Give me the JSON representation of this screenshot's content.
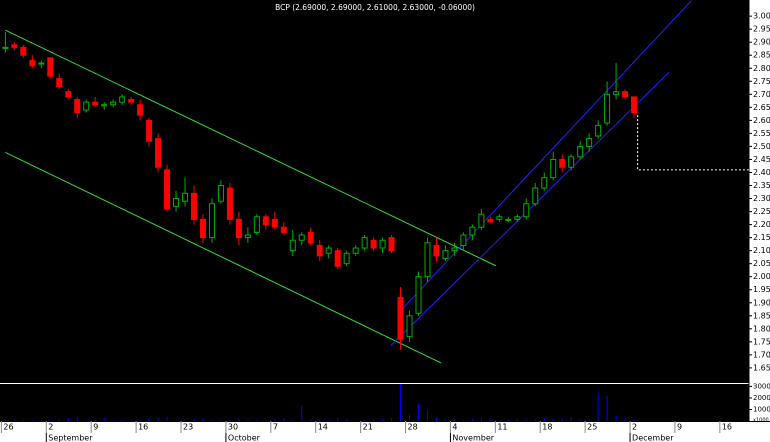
{
  "chart_data": {
    "type": "candlestick",
    "title": "BCP (2.69000, 2.69000, 2.61000, 2.63000, -0.06000)",
    "categories": [
      "26",
      null,
      null,
      null,
      null,
      "2",
      null,
      null,
      null,
      null,
      "9",
      null,
      null,
      null,
      null,
      "16",
      null,
      null,
      null,
      null,
      "23",
      null,
      null,
      null,
      null,
      "30",
      null,
      null,
      null,
      null,
      "7",
      null,
      null,
      null,
      null,
      "14",
      null,
      null,
      null,
      null,
      "21",
      null,
      null,
      null,
      null,
      "28",
      null,
      null,
      null,
      null,
      "4",
      null,
      null,
      null,
      null,
      "11",
      null,
      null,
      null,
      null,
      "18",
      null,
      null,
      null,
      null,
      "25",
      null,
      null,
      null,
      null,
      "2",
      null,
      null,
      null,
      null,
      "9",
      null,
      null,
      null,
      null,
      "16"
    ],
    "months": [
      {
        "label": "September",
        "at": 5
      },
      {
        "label": "October",
        "at": 25
      },
      {
        "label": "November",
        "at": 50
      },
      {
        "label": "December",
        "at": 70
      }
    ],
    "open": [
      2.88,
      2.89,
      2.88,
      2.83,
      2.82,
      2.84,
      2.76,
      2.71,
      2.68,
      2.64,
      2.67,
      2.66,
      2.66,
      2.67,
      2.68,
      2.66,
      2.6,
      2.53,
      2.41,
      2.27,
      2.29,
      2.32,
      2.22,
      2.15,
      2.29,
      2.34,
      2.22,
      2.15,
      2.17,
      2.23,
      2.22,
      2.19,
      2.1,
      2.14,
      2.17,
      2.12,
      2.09,
      2.1,
      2.05,
      2.09,
      2.11,
      2.14,
      2.11,
      2.15,
      1.92,
      1.77,
      1.86,
      2.0,
      2.12,
      2.07,
      2.1,
      2.12,
      2.16,
      2.19,
      2.22,
      2.22,
      2.22,
      2.22,
      2.23,
      2.28,
      2.34,
      2.38,
      2.45,
      2.42,
      2.46,
      2.5,
      2.54,
      2.59,
      2.7,
      2.71,
      2.69,
      null,
      null,
      null,
      null,
      null,
      null,
      null,
      null,
      null,
      null
    ],
    "high": [
      2.94,
      2.9,
      2.89,
      2.85,
      2.83,
      2.84,
      2.78,
      2.72,
      2.69,
      2.68,
      2.69,
      2.67,
      2.68,
      2.7,
      2.69,
      2.68,
      2.61,
      2.55,
      2.43,
      2.33,
      2.38,
      2.35,
      2.24,
      2.3,
      2.37,
      2.36,
      2.25,
      2.19,
      2.24,
      2.24,
      2.25,
      2.21,
      2.18,
      2.17,
      2.19,
      2.14,
      2.12,
      2.11,
      2.1,
      2.12,
      2.16,
      2.15,
      2.15,
      2.16,
      1.96,
      1.87,
      2.02,
      2.15,
      2.15,
      2.12,
      2.13,
      2.17,
      2.2,
      2.26,
      2.23,
      2.24,
      2.23,
      2.24,
      2.3,
      2.36,
      2.4,
      2.48,
      2.47,
      2.47,
      2.52,
      2.55,
      2.6,
      2.75,
      2.82,
      2.72,
      2.69,
      null,
      null,
      null,
      null,
      null,
      null,
      null,
      null,
      null,
      null
    ],
    "low": [
      2.86,
      2.87,
      2.84,
      2.8,
      2.8,
      2.76,
      2.72,
      2.68,
      2.61,
      2.63,
      2.65,
      2.64,
      2.65,
      2.66,
      2.66,
      2.6,
      2.5,
      2.4,
      2.25,
      2.25,
      2.27,
      2.2,
      2.13,
      2.13,
      2.28,
      2.2,
      2.12,
      2.13,
      2.16,
      2.18,
      2.18,
      2.16,
      2.08,
      2.12,
      2.12,
      2.06,
      2.07,
      2.03,
      2.04,
      2.08,
      2.1,
      2.1,
      2.09,
      2.09,
      1.72,
      1.75,
      1.85,
      1.98,
      2.06,
      2.06,
      2.08,
      2.1,
      2.14,
      2.18,
      2.21,
      2.21,
      2.21,
      2.21,
      2.22,
      2.27,
      2.33,
      2.37,
      2.4,
      2.41,
      2.45,
      2.48,
      2.53,
      2.58,
      2.68,
      2.68,
      2.61,
      null,
      null,
      null,
      null,
      null,
      null,
      null,
      null,
      null,
      null
    ],
    "close": [
      2.88,
      2.88,
      2.85,
      2.81,
      2.82,
      2.77,
      2.73,
      2.69,
      2.63,
      2.67,
      2.66,
      2.66,
      2.67,
      2.69,
      2.67,
      2.62,
      2.52,
      2.42,
      2.26,
      2.3,
      2.32,
      2.22,
      2.15,
      2.28,
      2.35,
      2.22,
      2.15,
      2.16,
      2.23,
      2.2,
      2.19,
      2.17,
      2.14,
      2.16,
      2.13,
      2.08,
      2.11,
      2.04,
      2.09,
      2.11,
      2.15,
      2.11,
      2.14,
      2.1,
      1.76,
      1.85,
      2.0,
      2.13,
      2.08,
      2.1,
      2.11,
      2.16,
      2.19,
      2.24,
      2.21,
      2.23,
      2.22,
      2.23,
      2.28,
      2.34,
      2.38,
      2.45,
      2.42,
      2.46,
      2.5,
      2.53,
      2.58,
      2.7,
      2.71,
      2.69,
      2.63,
      null,
      null,
      null,
      null,
      null,
      null,
      null,
      null,
      null,
      null
    ],
    "up_color": "#00b000",
    "down_color": "#ff0000",
    "xlim": [
      -0.6,
      82.8
    ],
    "ylim": [
      1.592,
      3.062
    ],
    "yticks": [
      {
        "value": 1.65,
        "label": "1.65"
      },
      {
        "value": 1.7,
        "label": "1.70"
      },
      {
        "value": 1.75,
        "label": "1.75"
      },
      {
        "value": 1.8,
        "label": "1.80"
      },
      {
        "value": 1.85,
        "label": "1.85"
      },
      {
        "value": 1.9,
        "label": "1.90"
      },
      {
        "value": 1.95,
        "label": "1.95"
      },
      {
        "value": 2.0,
        "label": "2.00"
      },
      {
        "value": 2.05,
        "label": "2.05"
      },
      {
        "value": 2.1,
        "label": "2.10"
      },
      {
        "value": 2.15,
        "label": "2.15"
      },
      {
        "value": 2.2,
        "label": "2.20"
      },
      {
        "value": 2.25,
        "label": "2.25"
      },
      {
        "value": 2.3,
        "label": "2.30"
      },
      {
        "value": 2.35,
        "label": "2.35"
      },
      {
        "value": 2.4,
        "label": "2.40"
      },
      {
        "value": 2.45,
        "label": "2.45"
      },
      {
        "value": 2.5,
        "label": "2.50"
      },
      {
        "value": 2.55,
        "label": "2.55"
      },
      {
        "value": 2.6,
        "label": "2.60"
      },
      {
        "value": 2.65,
        "label": "2.65"
      },
      {
        "value": 2.7,
        "label": "2.70"
      },
      {
        "value": 2.75,
        "label": "2.75"
      },
      {
        "value": 2.8,
        "label": "2.80"
      },
      {
        "value": 2.85,
        "label": "2.85"
      },
      {
        "value": 2.9,
        "label": "2.90"
      },
      {
        "value": 2.95,
        "label": "2.95"
      },
      {
        "value": 3.0,
        "label": "3.00"
      }
    ],
    "volume": {
      "color": "#0000ff",
      "values": [
        800,
        600,
        900,
        700,
        500,
        1200,
        1500,
        2500,
        4000,
        1000,
        800,
        3000,
        700,
        900,
        600,
        1500,
        2500,
        3000,
        4000,
        1500,
        1200,
        2000,
        2500,
        1500,
        1000,
        1200,
        2000,
        1500,
        800,
        600,
        1500,
        2500,
        1000,
        13000,
        1500,
        2000,
        1000,
        3000,
        1500,
        1000,
        1200,
        1500,
        2000,
        2500,
        32000,
        6000,
        15000,
        10000,
        3000,
        1500,
        1000,
        1200,
        2000,
        3000,
        1000,
        800,
        1500,
        1200,
        1000,
        2000,
        3000,
        1500,
        2000,
        3500,
        1500,
        2000,
        25000,
        22000,
        5000,
        3000,
        1500,
        null,
        null,
        null,
        null,
        null,
        null,
        null,
        null,
        null,
        null
      ],
      "ylim": [
        0,
        32100
      ],
      "yticks": [
        10000,
        20000,
        30000
      ],
      "unit_label": "x1000"
    },
    "lines": [
      {
        "color": "#33dd33",
        "dashed": false,
        "points": [
          [
            0,
            2.946
          ],
          [
            54.6,
            2.042
          ]
        ]
      },
      {
        "color": "#33dd33",
        "dashed": false,
        "points": [
          [
            0,
            2.477
          ],
          [
            48.5,
            1.669
          ]
        ]
      },
      {
        "color": "#2222ff",
        "dashed": false,
        "points": [
          [
            42.9,
            1.735
          ],
          [
            73.9,
            2.785
          ]
        ]
      },
      {
        "color": "#2222ff",
        "dashed": false,
        "points": [
          [
            44.0,
            1.869
          ],
          [
            76.4,
            3.06
          ]
        ]
      },
      {
        "color": "#ffffff",
        "dashed": true,
        "points": [
          [
            70.4,
            2.62
          ],
          [
            70.4,
            2.41
          ],
          [
            84,
            2.41
          ]
        ]
      }
    ]
  }
}
